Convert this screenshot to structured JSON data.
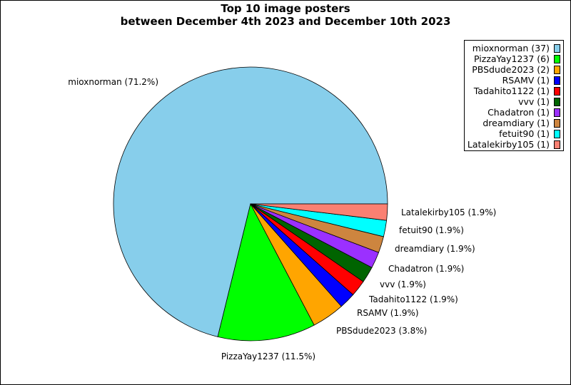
{
  "chart_data": {
    "type": "pie",
    "title": "Top 10 image posters",
    "subtitle": "between December 4th 2023 and December 10th 2023",
    "legend_position": "top-right",
    "slices": [
      {
        "name": "mioxnorman",
        "count": 37,
        "percent": "71.2%",
        "color": "#87CEEB",
        "legend": "mioxnorman (37)",
        "label": "mioxnorman (71.2%)"
      },
      {
        "name": "PizzaYay1237",
        "count": 6,
        "percent": "11.5%",
        "color": "#00FF00",
        "legend": "PizzaYay1237 (6)",
        "label": "PizzaYay1237 (11.5%)"
      },
      {
        "name": "PBSdude2023",
        "count": 2,
        "percent": "3.8%",
        "color": "#FFA500",
        "legend": "PBSdude2023 (2)",
        "label": "PBSdude2023 (3.8%)"
      },
      {
        "name": "RSAMV",
        "count": 1,
        "percent": "1.9%",
        "color": "#0000FF",
        "legend": "RSAMV (1)",
        "label": "RSAMV (1.9%)"
      },
      {
        "name": "Tadahito1122",
        "count": 1,
        "percent": "1.9%",
        "color": "#FF0000",
        "legend": "Tadahito1122 (1)",
        "label": "Tadahito1122 (1.9%)"
      },
      {
        "name": "vvv",
        "count": 1,
        "percent": "1.9%",
        "color": "#006400",
        "legend": "vvv (1)",
        "label": "vvv (1.9%)"
      },
      {
        "name": "Chadatron",
        "count": 1,
        "percent": "1.9%",
        "color": "#9B30FF",
        "legend": "Chadatron (1)",
        "label": "Chadatron (1.9%)"
      },
      {
        "name": "dreamdiary",
        "count": 1,
        "percent": "1.9%",
        "color": "#CD853F",
        "legend": "dreamdiary (1)",
        "label": "dreamdiary (1.9%)"
      },
      {
        "name": "fetuit90",
        "count": 1,
        "percent": "1.9%",
        "color": "#00FFFF",
        "legend": "fetuit90 (1)",
        "label": "fetuit90 (1.9%)"
      },
      {
        "name": "Latalekirby105",
        "count": 1,
        "percent": "1.9%",
        "color": "#FA8072",
        "legend": "Latalekirby105 (1)",
        "label": "Latalekirby105 (1.9%)"
      }
    ]
  }
}
